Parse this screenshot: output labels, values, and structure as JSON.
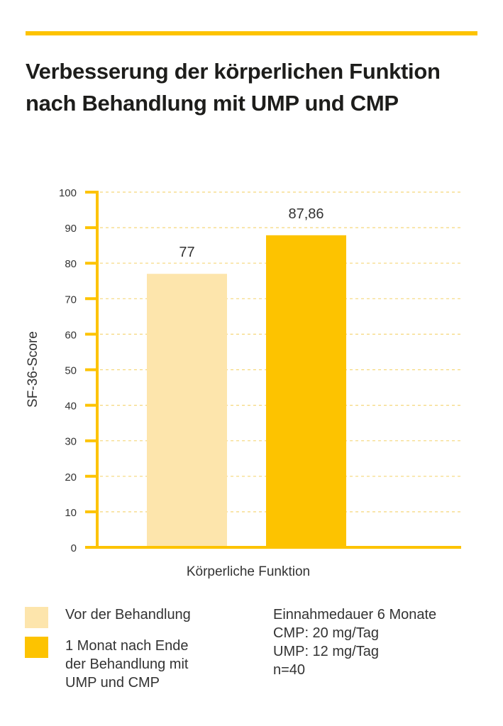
{
  "title": "Verbesserung der körperlichen Funktion nach Behandlung mit UMP und CMP",
  "colors": {
    "accent": "#fdc300",
    "before": "#fde5ac",
    "after": "#fdc300",
    "grid": "#f5d77a"
  },
  "chart_data": {
    "type": "bar",
    "categories": [
      "Körperliche Funktion"
    ],
    "xlabel": "Körperliche Funktion",
    "ylabel": "SF-36-Score",
    "ylim": [
      0,
      100
    ],
    "yticks": [
      0,
      10,
      20,
      30,
      40,
      50,
      60,
      70,
      80,
      90,
      100
    ],
    "grid": true,
    "series": [
      {
        "name": "Vor der Behandlung",
        "values": [
          77
        ],
        "label": "77",
        "color": "#fde5ac"
      },
      {
        "name": "1 Monat nach Ende der Behandlung mit UMP und CMP",
        "values": [
          87.86
        ],
        "label": "87,86",
        "color": "#fdc300"
      }
    ],
    "legend_position": "bottom-left"
  },
  "legend": {
    "items": [
      {
        "label_lines": [
          "Vor der Behandlung"
        ]
      },
      {
        "label_lines": [
          "1 Monat nach Ende",
          "der Behandlung mit",
          "UMP und CMP"
        ]
      }
    ]
  },
  "notes": [
    "Einnahmedauer 6 Monate",
    "CMP: 20 mg/Tag",
    "UMP: 12 mg/Tag",
    "n=40"
  ]
}
